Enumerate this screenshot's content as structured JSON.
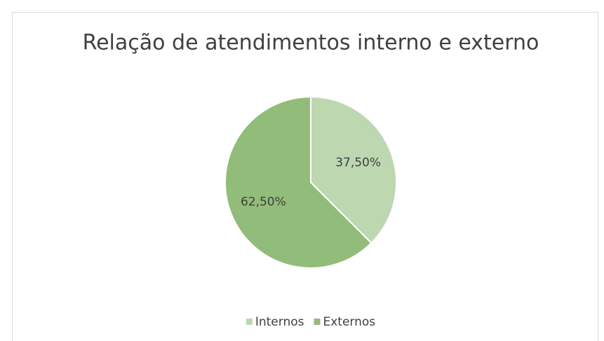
{
  "chart_data": {
    "type": "pie",
    "title": "Relação de atendimentos interno e externo",
    "categories": [
      "Internos",
      "Externos"
    ],
    "values": [
      37.5,
      62.5
    ],
    "value_labels": [
      "37,50%",
      "62,50%"
    ],
    "colors": [
      "#bdd7b1",
      "#92bc7a"
    ],
    "legend": "bottom"
  }
}
